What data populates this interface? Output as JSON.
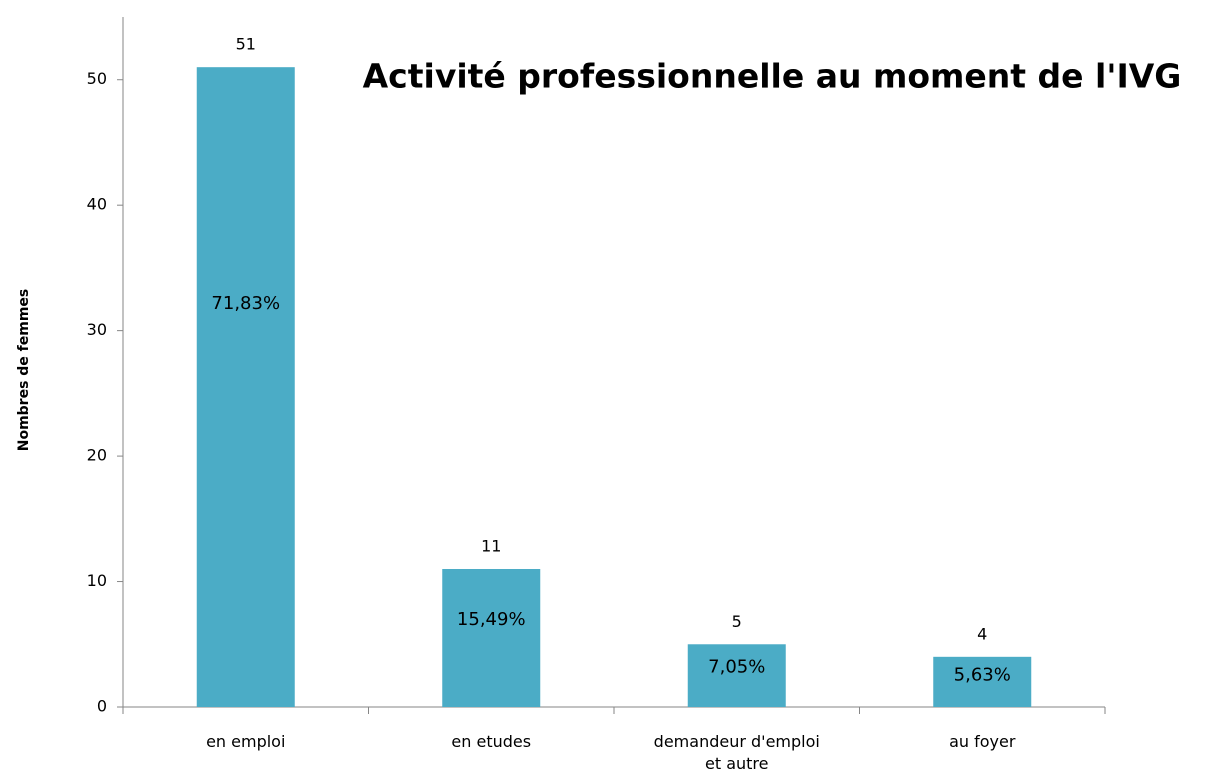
{
  "chart_data": {
    "type": "bar",
    "title": "Activité professionnelle au moment de l'IVG",
    "y_label": "Nombres de femmes",
    "categories": [
      "en emploi",
      "en etudes",
      "demandeur d'emploi et autre",
      "au foyer"
    ],
    "values": [
      51,
      11,
      5,
      4
    ],
    "shares": [
      71.83,
      15.49,
      7.05,
      5.63
    ],
    "share_labels": [
      "71,83%",
      "15,49%",
      "7,05%",
      "5,63%"
    ],
    "color": "#4bacc6",
    "ylim": [
      0,
      55
    ],
    "yticks": [
      0,
      10,
      20,
      30,
      40,
      50
    ],
    "grid": false
  }
}
